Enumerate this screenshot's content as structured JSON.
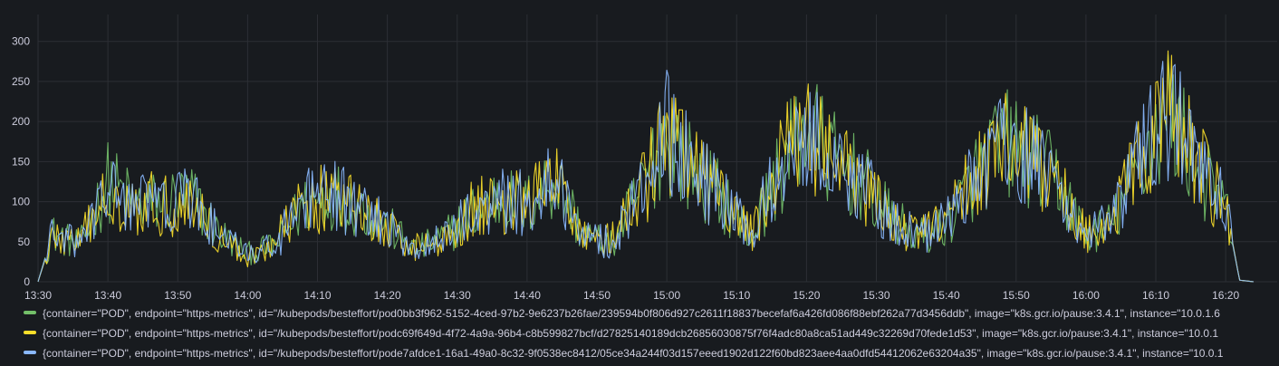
{
  "chart_data": {
    "type": "line",
    "y_ticks": [
      0,
      50,
      100,
      150,
      200,
      250,
      300
    ],
    "ylim": [
      0,
      320
    ],
    "xlim": [
      "13:30",
      "16:24"
    ],
    "x_ticks": [
      "13:30",
      "13:40",
      "13:50",
      "14:00",
      "14:10",
      "14:20",
      "14:30",
      "14:40",
      "14:50",
      "15:00",
      "15:10",
      "15:20",
      "15:30",
      "15:40",
      "15:50",
      "16:00",
      "16:10",
      "16:20"
    ],
    "grid": true,
    "legend_placement": "bottom",
    "series": [
      {
        "name": "{container=\"POD\", endpoint=\"https-metrics\", id=\"/kubepods/besteffort/pod0bb3f962-5152-4ced-97b2-9e6237b26fae/239594b0f806d927c2611f18837becefaf6a426fd086f88ebf262a77d3456ddb\", image=\"k8s.gcr.io/pause:3.4.1\", instance=\"10.0.1.6",
        "color": "#73bf69",
        "x": [
          "13:30",
          "13:32",
          "13:36",
          "13:40",
          "13:44",
          "13:48",
          "13:52",
          "13:56",
          "14:00",
          "14:04",
          "14:08",
          "14:12",
          "14:16",
          "14:20",
          "14:24",
          "14:28",
          "14:32",
          "14:36",
          "14:40",
          "14:44",
          "14:48",
          "14:52",
          "14:56",
          "15:00",
          "15:04",
          "15:08",
          "15:12",
          "15:16",
          "15:20",
          "15:24",
          "15:28",
          "15:32",
          "15:36",
          "15:40",
          "15:44",
          "15:48",
          "15:52",
          "15:56",
          "16:00",
          "16:04",
          "16:08",
          "16:12",
          "16:16",
          "16:20",
          "16:22",
          "16:24"
        ],
        "y": [
          0,
          60,
          45,
          125,
          95,
          100,
          105,
          60,
          35,
          45,
          95,
          110,
          95,
          70,
          40,
          55,
          85,
          105,
          95,
          130,
          60,
          45,
          110,
          185,
          135,
          105,
          55,
          135,
          195,
          150,
          125,
          80,
          55,
          70,
          130,
          175,
          155,
          125,
          55,
          75,
          155,
          215,
          140,
          90,
          2,
          0
        ]
      },
      {
        "name": "{container=\"POD\", endpoint=\"https-metrics\", id=\"/kubepods/besteffort/podc69f649d-4f72-4a9a-96b4-c8b599827bcf/d27825140189dcb26856030875f76f4adc80a8ca51ad449c32269d70fede1d53\", image=\"k8s.gcr.io/pause:3.4.1\", instance=\"10.0.1",
        "color": "#fade2a",
        "x": [
          "13:30",
          "13:32",
          "13:36",
          "13:40",
          "13:44",
          "13:48",
          "13:52",
          "13:56",
          "14:00",
          "14:04",
          "14:08",
          "14:12",
          "14:16",
          "14:20",
          "14:24",
          "14:28",
          "14:32",
          "14:36",
          "14:40",
          "14:44",
          "14:48",
          "14:52",
          "14:56",
          "15:00",
          "15:04",
          "15:08",
          "15:12",
          "15:16",
          "15:20",
          "15:24",
          "15:28",
          "15:32",
          "15:36",
          "15:40",
          "15:44",
          "15:48",
          "15:52",
          "15:56",
          "16:00",
          "16:04",
          "16:08",
          "16:12",
          "16:16",
          "16:20",
          "16:22",
          "16:24"
        ],
        "y": [
          0,
          55,
          50,
          110,
          100,
          95,
          100,
          55,
          30,
          50,
          100,
          105,
          90,
          65,
          45,
          50,
          90,
          100,
          100,
          125,
          65,
          50,
          105,
          180,
          140,
          100,
          60,
          140,
          200,
          145,
          120,
          75,
          60,
          75,
          135,
          180,
          150,
          120,
          60,
          80,
          160,
          210,
          145,
          95,
          2,
          0
        ]
      },
      {
        "name": "{container=\"POD\", endpoint=\"https-metrics\", id=\"/kubepods/besteffort/pode7afdce1-16a1-49a0-8c32-9f0538ec8412/05ce34a244f03d157eeed1902d122f60bd823aee4aa0dfd54412062e63204a35\", image=\"k8s.gcr.io/pause:3.4.1\", instance=\"10.0.1",
        "color": "#8ab8ff",
        "x": [
          "13:30",
          "13:32",
          "13:36",
          "13:40",
          "13:44",
          "13:48",
          "13:52",
          "13:56",
          "14:00",
          "14:04",
          "14:08",
          "14:12",
          "14:16",
          "14:20",
          "14:24",
          "14:28",
          "14:32",
          "14:36",
          "14:40",
          "14:44",
          "14:48",
          "14:52",
          "14:56",
          "15:00",
          "15:04",
          "15:08",
          "15:12",
          "15:16",
          "15:20",
          "15:24",
          "15:28",
          "15:32",
          "15:36",
          "15:40",
          "15:44",
          "15:48",
          "15:52",
          "15:56",
          "16:00",
          "16:04",
          "16:08",
          "16:12",
          "16:16",
          "16:20",
          "16:22",
          "16:24"
        ],
        "y": [
          0,
          58,
          48,
          115,
          98,
          98,
          102,
          58,
          33,
          48,
          98,
          108,
          92,
          68,
          42,
          52,
          88,
          102,
          98,
          128,
          62,
          48,
          108,
          190,
          138,
          102,
          58,
          138,
          198,
          148,
          122,
          78,
          58,
          72,
          132,
          178,
          152,
          122,
          58,
          78,
          158,
          212,
          142,
          92,
          2,
          0
        ]
      }
    ]
  }
}
